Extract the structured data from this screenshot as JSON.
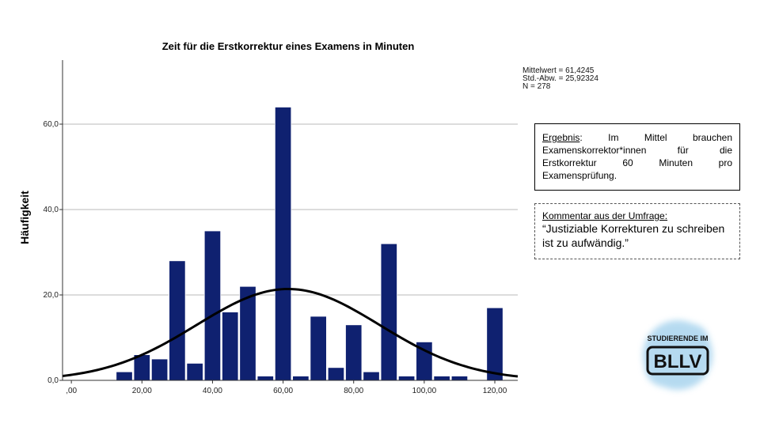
{
  "chart_data": {
    "type": "bar",
    "title": "Zeit für die Erstkorrektur eines Examens in Minuten",
    "ylabel": "Häufigkeit",
    "xlabel": "",
    "xlim": [
      -2.5,
      126.5
    ],
    "ylim": [
      0,
      75
    ],
    "grid": true,
    "x_ticks": [
      {
        "value": 0,
        "label": ",00"
      },
      {
        "value": 20,
        "label": "20,00"
      },
      {
        "value": 40,
        "label": "40,00"
      },
      {
        "value": 60,
        "label": "60,00"
      },
      {
        "value": 80,
        "label": "80,00"
      },
      {
        "value": 100,
        "label": "100,00"
      },
      {
        "value": 120,
        "label": "120,00"
      }
    ],
    "y_ticks": [
      {
        "value": 0,
        "label": "0,0"
      },
      {
        "value": 20,
        "label": "20,0"
      },
      {
        "value": 40,
        "label": "40,0"
      },
      {
        "value": 60,
        "label": "60,0"
      }
    ],
    "bin_width": 4.6,
    "bins": [
      {
        "x": 15,
        "count": 2
      },
      {
        "x": 20,
        "count": 6
      },
      {
        "x": 25,
        "count": 5
      },
      {
        "x": 30,
        "count": 28
      },
      {
        "x": 35,
        "count": 4
      },
      {
        "x": 40,
        "count": 35
      },
      {
        "x": 45,
        "count": 16
      },
      {
        "x": 50,
        "count": 22
      },
      {
        "x": 55,
        "count": 1
      },
      {
        "x": 60,
        "count": 64
      },
      {
        "x": 65,
        "count": 1
      },
      {
        "x": 70,
        "count": 15
      },
      {
        "x": 75,
        "count": 3
      },
      {
        "x": 80,
        "count": 13
      },
      {
        "x": 85,
        "count": 2
      },
      {
        "x": 90,
        "count": 32
      },
      {
        "x": 95,
        "count": 1
      },
      {
        "x": 100,
        "count": 9
      },
      {
        "x": 105,
        "count": 1
      },
      {
        "x": 110,
        "count": 1
      },
      {
        "x": 120,
        "count": 17
      }
    ],
    "normal_curve": {
      "mean": 61.4245,
      "sd": 25.92324,
      "n": 278,
      "bin_width": 5
    },
    "stats": [
      "Mittelwert = 61,4245",
      "Std.-Abw. = 25,92324",
      "N = 278"
    ],
    "colors": {
      "bar": "#0f2170",
      "bar_edge": "#ffffff",
      "curve": "#000000",
      "grid": "#d0d0d0"
    }
  },
  "result": {
    "label": "Ergebnis",
    "text": ": Im Mittel brauchen Examenskorrektor*innen für die Erstkorrektur 60 Minuten pro Examensprüfung."
  },
  "comment": {
    "heading": "Kommentar aus der Umfrage:",
    "quote": "“Justiziable Korrekturen zu schreiben ist zu aufwändig.”"
  },
  "logo": {
    "top_text": "STUDIERENDE IM",
    "main_text": "BLLV",
    "splash_color": "#a9d4ee"
  }
}
